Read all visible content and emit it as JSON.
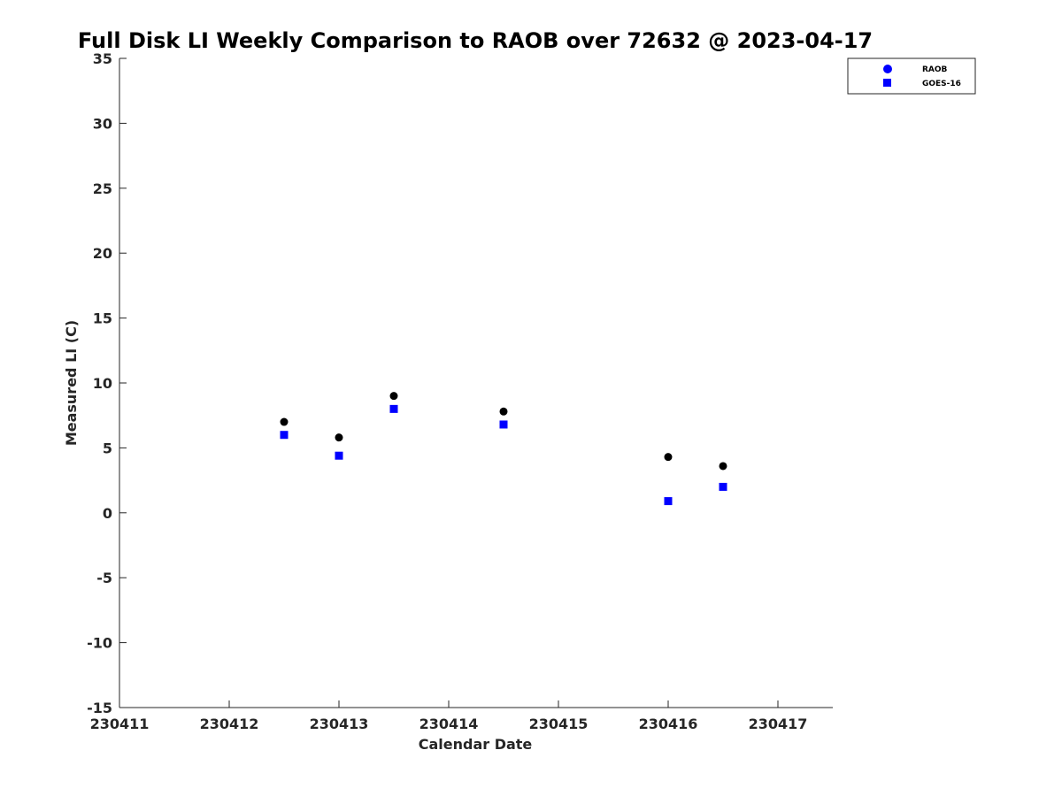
{
  "chart_data": {
    "type": "scatter",
    "title": "Full Disk LI Weekly Comparison to RAOB over 72632 @ 2023-04-17",
    "xlabel": "Calendar Date",
    "ylabel": "Measured LI (C)",
    "xlim": [
      0,
      6.5
    ],
    "ylim": [
      -15,
      35
    ],
    "x_ticks": [
      {
        "value": 0,
        "label": "230411"
      },
      {
        "value": 1,
        "label": "230412"
      },
      {
        "value": 2,
        "label": "230413"
      },
      {
        "value": 3,
        "label": "230414"
      },
      {
        "value": 4,
        "label": "230415"
      },
      {
        "value": 5,
        "label": "230416"
      },
      {
        "value": 6,
        "label": "230417"
      }
    ],
    "y_ticks": [
      {
        "value": 35,
        "label": "35"
      },
      {
        "value": 30,
        "label": "30"
      },
      {
        "value": 25,
        "label": "25"
      },
      {
        "value": 20,
        "label": "20"
      },
      {
        "value": 15,
        "label": "15"
      },
      {
        "value": 10,
        "label": "10"
      },
      {
        "value": 5,
        "label": "5"
      },
      {
        "value": 0,
        "label": "0"
      },
      {
        "value": -5,
        "label": "-5"
      },
      {
        "value": -10,
        "label": "-10"
      },
      {
        "value": -15,
        "label": "-15"
      }
    ],
    "grid": false,
    "legend_position": "top-right",
    "series": [
      {
        "name": "RAOB",
        "marker": "circle",
        "legend_color": "#0000ff",
        "point_color": "#000000",
        "points": [
          {
            "x": 1.5,
            "y": 7.0
          },
          {
            "x": 2.0,
            "y": 5.8
          },
          {
            "x": 2.5,
            "y": 9.0
          },
          {
            "x": 3.5,
            "y": 7.8
          },
          {
            "x": 5.0,
            "y": 4.3
          },
          {
            "x": 5.5,
            "y": 3.6
          }
        ]
      },
      {
        "name": "GOES-16",
        "marker": "square",
        "legend_color": "#0000ff",
        "point_color": "#0000ff",
        "points": [
          {
            "x": 1.5,
            "y": 6.0
          },
          {
            "x": 2.0,
            "y": 4.4
          },
          {
            "x": 2.5,
            "y": 8.0
          },
          {
            "x": 3.5,
            "y": 6.8
          },
          {
            "x": 5.0,
            "y": 0.9
          },
          {
            "x": 5.5,
            "y": 2.0
          }
        ]
      }
    ]
  }
}
